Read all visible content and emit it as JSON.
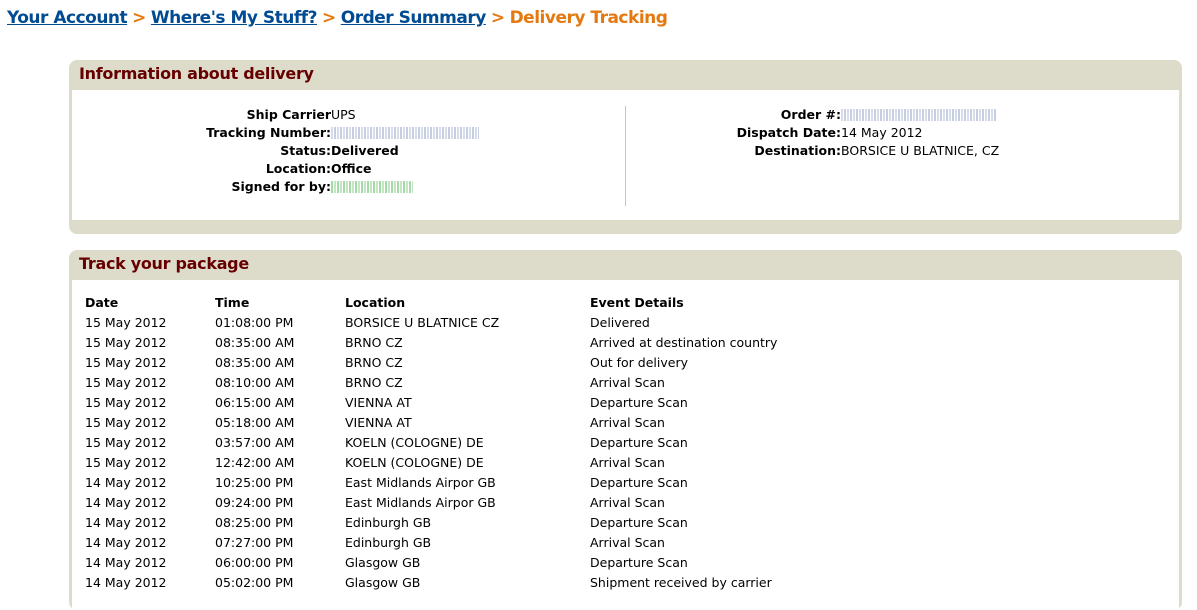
{
  "breadcrumb": {
    "items": [
      "Your Account",
      "Where's My Stuff?",
      "Order Summary"
    ],
    "current": "Delivery Tracking",
    "separator": ">"
  },
  "info": {
    "title": "Information about delivery",
    "left": [
      {
        "label": "Ship Carrier",
        "value": "UPS"
      },
      {
        "label": "Tracking Number:",
        "value": null,
        "redacted": true
      },
      {
        "label": "Status:",
        "value": "Delivered"
      },
      {
        "label": "Location:",
        "value": "Office"
      },
      {
        "label": "Signed for by:",
        "value": null,
        "redacted": true
      }
    ],
    "right": [
      {
        "label": "Order #:",
        "value": null,
        "redacted": true
      },
      {
        "label": "Dispatch Date:",
        "value": "14 May 2012"
      },
      {
        "label": "Destination:",
        "value": "BORSICE U BLATNICE, CZ"
      }
    ]
  },
  "track": {
    "title": "Track your package",
    "columns": [
      "Date",
      "Time",
      "Location",
      "Event Details"
    ],
    "rows": [
      [
        "15 May 2012",
        "01:08:00 PM",
        "BORSICE U BLATNICE CZ",
        "Delivered"
      ],
      [
        "15 May 2012",
        "08:35:00 AM",
        "BRNO CZ",
        "Arrived at destination country"
      ],
      [
        "15 May 2012",
        "08:35:00 AM",
        "BRNO CZ",
        "Out for delivery"
      ],
      [
        "15 May 2012",
        "08:10:00 AM",
        "BRNO CZ",
        "Arrival Scan"
      ],
      [
        "15 May 2012",
        "06:15:00 AM",
        "VIENNA AT",
        "Departure Scan"
      ],
      [
        "15 May 2012",
        "05:18:00 AM",
        "VIENNA AT",
        "Arrival Scan"
      ],
      [
        "15 May 2012",
        "03:57:00 AM",
        "KOELN (COLOGNE) DE",
        "Departure Scan"
      ],
      [
        "15 May 2012",
        "12:42:00 AM",
        "KOELN (COLOGNE) DE",
        "Arrival Scan"
      ],
      [
        "14 May 2012",
        "10:25:00 PM",
        "East Midlands Airpor GB",
        "Departure Scan"
      ],
      [
        "14 May 2012",
        "09:24:00 PM",
        "East Midlands Airpor GB",
        "Arrival Scan"
      ],
      [
        "14 May 2012",
        "08:25:00 PM",
        "Edinburgh GB",
        "Departure Scan"
      ],
      [
        "14 May 2012",
        "07:27:00 PM",
        "Edinburgh GB",
        "Arrival Scan"
      ],
      [
        "14 May 2012",
        "06:00:00 PM",
        "Glasgow GB",
        "Departure Scan"
      ],
      [
        "14 May 2012",
        "05:02:00 PM",
        "Glasgow GB",
        "Shipment received by carrier"
      ]
    ]
  }
}
